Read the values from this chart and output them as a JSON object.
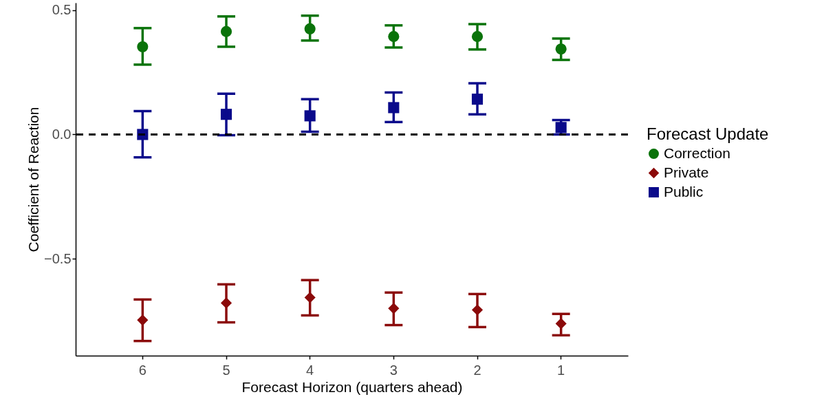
{
  "chart_data": {
    "type": "scatter",
    "xlabel": "Forecast Horizon (quarters ahead)",
    "ylabel": "Coefficient of Reaction",
    "legend_title": "Forecast Update",
    "legend": "right",
    "grid": false,
    "categories": [
      "6",
      "5",
      "4",
      "3",
      "2",
      "1"
    ],
    "ylim": [
      -0.89,
      0.53
    ],
    "yticks": [
      {
        "value": -0.5,
        "label": "−0.5"
      },
      {
        "value": 0,
        "label": "0.0"
      },
      {
        "value": 0.5,
        "label": "0.5"
      }
    ],
    "ref_lines": [
      {
        "axis": "y",
        "value": 0,
        "line_style": "dashed",
        "color": "#000000"
      }
    ],
    "series": [
      {
        "name": "Correction",
        "color": "#0a730a",
        "marker": "circle",
        "values": [
          0.353,
          0.414,
          0.425,
          0.394,
          0.394,
          0.344
        ],
        "errors": [
          [
            0.281,
            0.428
          ],
          [
            0.353,
            0.475
          ],
          [
            0.378,
            0.478
          ],
          [
            0.35,
            0.439
          ],
          [
            0.342,
            0.444
          ],
          [
            0.3,
            0.386
          ]
        ]
      },
      {
        "name": "Private",
        "color": "#8b0a0a",
        "marker": "diamond",
        "values": [
          -0.747,
          -0.678,
          -0.656,
          -0.7,
          -0.706,
          -0.761
        ],
        "errors": [
          [
            -0.831,
            -0.664
          ],
          [
            -0.756,
            -0.603
          ],
          [
            -0.728,
            -0.586
          ],
          [
            -0.767,
            -0.636
          ],
          [
            -0.775,
            -0.642
          ],
          [
            -0.808,
            -0.722
          ]
        ]
      },
      {
        "name": "Public",
        "color": "#0a0a8b",
        "marker": "square",
        "values": [
          0,
          0.081,
          0.075,
          0.108,
          0.142,
          0.028
        ],
        "errors": [
          [
            -0.092,
            0.094
          ],
          [
            -0.003,
            0.164
          ],
          [
            0.011,
            0.142
          ],
          [
            0.05,
            0.169
          ],
          [
            0.081,
            0.206
          ],
          [
            0,
            0.058
          ]
        ]
      }
    ]
  }
}
